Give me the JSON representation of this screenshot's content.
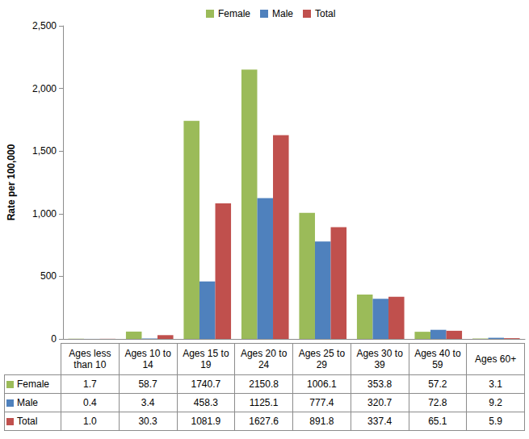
{
  "chart_data": {
    "type": "bar",
    "y_label": "Rate per 100,000",
    "categories": [
      "Ages less than 10",
      "Ages 10 to 14",
      "Ages 15 to 19",
      "Ages 20 to 24",
      "Ages 25 to 29",
      "Ages 30 to 39",
      "Ages 40 to 59",
      "Ages 60+"
    ],
    "series": [
      {
        "name": "Female",
        "color": "#9bbb59",
        "values": [
          1.7,
          58.7,
          1740.7,
          2150.8,
          1006.1,
          353.8,
          57.2,
          3.1
        ],
        "value_labels": [
          "1.7",
          "58.7",
          "1740.7",
          "2150.8",
          "1006.1",
          "353.8",
          "57.2",
          "3.1"
        ]
      },
      {
        "name": "Male",
        "color": "#4f81bd",
        "values": [
          0.4,
          3.4,
          458.3,
          1125.1,
          777.4,
          320.7,
          72.8,
          9.2
        ],
        "value_labels": [
          "0.4",
          "3.4",
          "458.3",
          "1125.1",
          "777.4",
          "320.7",
          "72.8",
          "9.2"
        ]
      },
      {
        "name": "Total",
        "color": "#c0504d",
        "values": [
          1.0,
          30.3,
          1081.9,
          1627.6,
          891.8,
          337.4,
          65.1,
          5.9
        ],
        "value_labels": [
          "1.0",
          "30.3",
          "1081.9",
          "1627.6",
          "891.8",
          "337.4",
          "65.1",
          "5.9"
        ]
      }
    ],
    "ylim": [
      0,
      2500
    ],
    "yticks": [
      0,
      500,
      {
        "value": 1000,
        "label": "1,000"
      },
      {
        "value": 1500,
        "label": "1,500"
      },
      {
        "value": 2000,
        "label": "2,000"
      },
      {
        "value": 2500,
        "label": "2,500"
      }
    ],
    "grid": false,
    "legend": "top"
  }
}
